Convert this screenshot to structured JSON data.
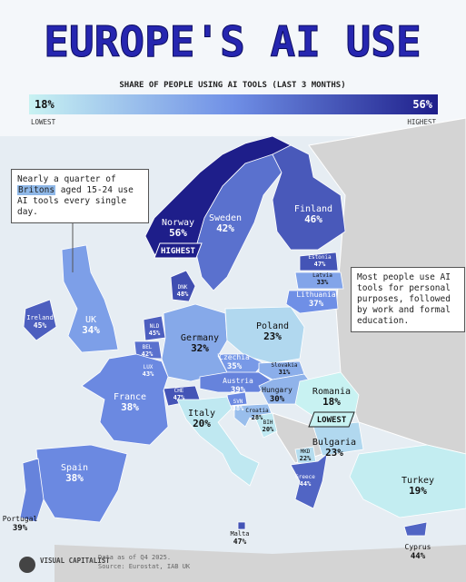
{
  "header": {
    "title": "EUROPE'S AI USE",
    "subtitle": "SHARE OF PEOPLE USING AI TOOLS (LAST 3 MONTHS)"
  },
  "legend": {
    "min": "18%",
    "max": "56%",
    "min_label": "LOWEST",
    "max_label": "HIGHEST"
  },
  "countries": [
    {
      "name": "Norway",
      "value": "56%"
    },
    {
      "name": "Sweden",
      "value": "42%"
    },
    {
      "name": "Finland",
      "value": "46%"
    },
    {
      "name": "Estonia",
      "value": "47%"
    },
    {
      "name": "Latvia",
      "value": "33%"
    },
    {
      "name": "Lithuania",
      "value": "37%"
    },
    {
      "name": "DNK",
      "value": "48%"
    },
    {
      "name": "Ireland",
      "value": "45%"
    },
    {
      "name": "UK",
      "value": "34%"
    },
    {
      "name": "NLD",
      "value": "45%"
    },
    {
      "name": "BEL",
      "value": "42%"
    },
    {
      "name": "LUX",
      "value": "43%"
    },
    {
      "name": "Germany",
      "value": "32%"
    },
    {
      "name": "Poland",
      "value": "23%"
    },
    {
      "name": "Czechia",
      "value": "35%"
    },
    {
      "name": "Slovakia",
      "value": "31%"
    },
    {
      "name": "Austria",
      "value": "39%"
    },
    {
      "name": "CHE",
      "value": "47%"
    },
    {
      "name": "France",
      "value": "38%"
    },
    {
      "name": "Hungary",
      "value": "30%"
    },
    {
      "name": "SVN",
      "value": "38%"
    },
    {
      "name": "Croatia",
      "value": "28%"
    },
    {
      "name": "BIH",
      "value": "20%"
    },
    {
      "name": "Romania",
      "value": "18%"
    },
    {
      "name": "Italy",
      "value": "20%"
    },
    {
      "name": "Bulgaria",
      "value": "23%"
    },
    {
      "name": "MKD",
      "value": "22%"
    },
    {
      "name": "Greece",
      "value": "44%"
    },
    {
      "name": "Turkey",
      "value": "19%"
    },
    {
      "name": "Spain",
      "value": "38%"
    },
    {
      "name": "Portugal",
      "value": "39%"
    },
    {
      "name": "Malta",
      "value": "47%"
    },
    {
      "name": "Cyprus",
      "value": "44%"
    }
  ],
  "badges": {
    "highest": "HIGHEST",
    "lowest": "LOWEST"
  },
  "notes": {
    "uk": {
      "before": "Nearly a quarter of",
      "highlight": "Britons",
      "after": "aged 15-24 use AI tools every single day."
    },
    "right": "Most people use AI tools for personal purposes, followed by work and formal education."
  },
  "footer": {
    "brand": "VISUAL CAPITALIST",
    "date": "Data as of Q4 2025.",
    "source": "Source: Eurostat, IAB UK"
  }
}
